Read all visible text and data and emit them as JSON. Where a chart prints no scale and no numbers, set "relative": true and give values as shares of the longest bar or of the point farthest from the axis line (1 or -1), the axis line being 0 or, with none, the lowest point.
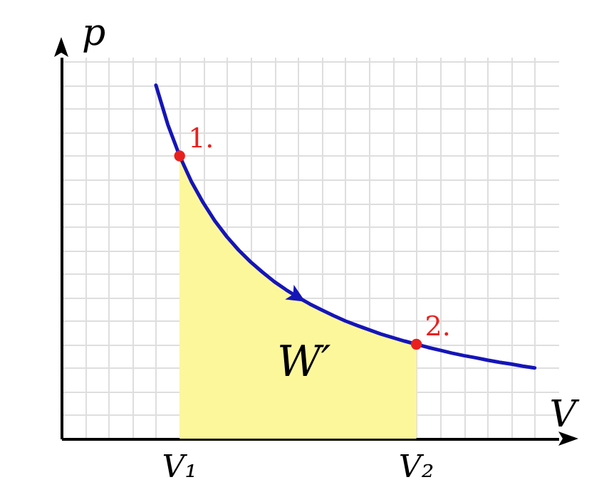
{
  "chart_data": {
    "type": "line",
    "relative": true,
    "xlabel": "V",
    "ylabel": "p",
    "grid": true,
    "categories": [
      null,
      null,
      "V₁",
      null,
      null,
      null,
      null,
      null,
      null,
      null,
      null,
      null,
      null,
      null,
      null,
      null,
      null,
      null,
      null,
      null,
      null,
      null,
      "V₂",
      null,
      null,
      null,
      null,
      null,
      null,
      null,
      null,
      null,
      null
    ],
    "series": [
      {
        "type": "area",
        "color": "#fdf79c",
        "values": [
          null,
          null,
          0.8,
          0.727,
          0.667,
          0.615,
          0.571,
          0.533,
          0.5,
          0.471,
          0.444,
          0.421,
          0.4,
          0.381,
          0.364,
          0.348,
          0.333,
          0.32,
          0.308,
          0.296,
          0.286,
          0.276,
          0.267,
          null,
          null,
          null,
          null,
          null,
          null,
          null,
          null,
          null,
          null
        ]
      },
      {
        "type": "line",
        "color": "#1515b8",
        "values": [
          1,
          0.889,
          0.8,
          0.727,
          0.667,
          0.615,
          0.571,
          0.533,
          0.5,
          0.471,
          0.444,
          0.421,
          0.4,
          0.381,
          0.364,
          0.348,
          0.333,
          0.32,
          0.308,
          0.296,
          0.286,
          0.276,
          0.267,
          0.258,
          0.25,
          0.242,
          0.235,
          0.229,
          0.222,
          0.216,
          0.211,
          0.205,
          0.2
        ]
      },
      {
        "type": "scatter",
        "color": "#e8211e",
        "marker": "circle",
        "values": [
          null,
          null,
          0.8,
          null,
          null,
          null,
          null,
          null,
          null,
          null,
          null,
          null,
          null,
          null,
          null,
          null,
          null,
          null,
          null,
          null,
          null,
          null,
          0.267,
          null,
          null,
          null,
          null,
          null,
          null,
          null,
          null,
          null,
          null
        ]
      }
    ],
    "annotations": [
      {
        "text": "1.",
        "x": "V₁",
        "y": 0.8
      },
      {
        "text": "2.",
        "x": "V₂",
        "y": 0.267
      },
      "W′"
    ]
  }
}
